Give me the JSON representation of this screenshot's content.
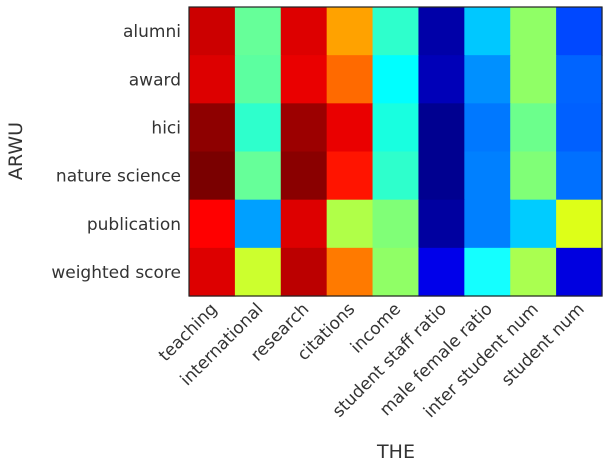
{
  "chart_data": {
    "type": "heatmap",
    "title": "",
    "xlabel": "THE",
    "ylabel": "ARWU",
    "x_categories": [
      "teaching",
      "international",
      "research",
      "citations",
      "income",
      "student staff ratio",
      "male female ratio",
      "inter student num",
      "student num"
    ],
    "y_categories": [
      "alumni",
      "award",
      "hici",
      "nature science",
      "publication",
      "weighted score"
    ],
    "colormap": "jet",
    "value_range": [
      0,
      1
    ],
    "grid": false,
    "legend": "none",
    "cell_colors": [
      [
        "#cc0000",
        "#66ff99",
        "#dd0000",
        "#ffa200",
        "#2effcc",
        "#0000a8",
        "#00c8ff",
        "#90ff66",
        "#0048ff"
      ],
      [
        "#dd0000",
        "#5cffa0",
        "#ea0000",
        "#ff6a00",
        "#00ffff",
        "#0000b8",
        "#0090ff",
        "#90ff66",
        "#0064ff"
      ],
      [
        "#8e0000",
        "#2effcc",
        "#9c0000",
        "#ea0000",
        "#18ffe0",
        "#000090",
        "#0078ff",
        "#6cff8c",
        "#0060ff"
      ],
      [
        "#7a0000",
        "#66ff99",
        "#8a0000",
        "#ff1400",
        "#2effcc",
        "#000090",
        "#0080ff",
        "#80ff77",
        "#0070ff"
      ],
      [
        "#ff0000",
        "#00a0ff",
        "#dd0000",
        "#b0ff48",
        "#80ff77",
        "#0000a0",
        "#0080ff",
        "#00ccff",
        "#ddff18"
      ],
      [
        "#dd0000",
        "#ccff2e",
        "#bb0000",
        "#ff7a00",
        "#90ff66",
        "#0000ea",
        "#14ffff",
        "#aaff50",
        "#0000e0"
      ]
    ],
    "values": [
      [
        0.89,
        0.53,
        0.92,
        0.74,
        0.43,
        0.1,
        0.3,
        0.59,
        0.2
      ],
      [
        0.92,
        0.51,
        0.95,
        0.83,
        0.38,
        0.11,
        0.25,
        0.59,
        0.22
      ],
      [
        0.78,
        0.43,
        0.8,
        0.95,
        0.4,
        0.08,
        0.24,
        0.55,
        0.21
      ],
      [
        0.75,
        0.53,
        0.77,
        0.87,
        0.43,
        0.08,
        0.24,
        0.57,
        0.23
      ],
      [
        0.85,
        0.27,
        0.92,
        0.67,
        0.57,
        0.09,
        0.24,
        0.36,
        0.66
      ],
      [
        0.92,
        0.7,
        0.85,
        0.81,
        0.59,
        0.12,
        0.36,
        0.61,
        0.12
      ]
    ]
  }
}
